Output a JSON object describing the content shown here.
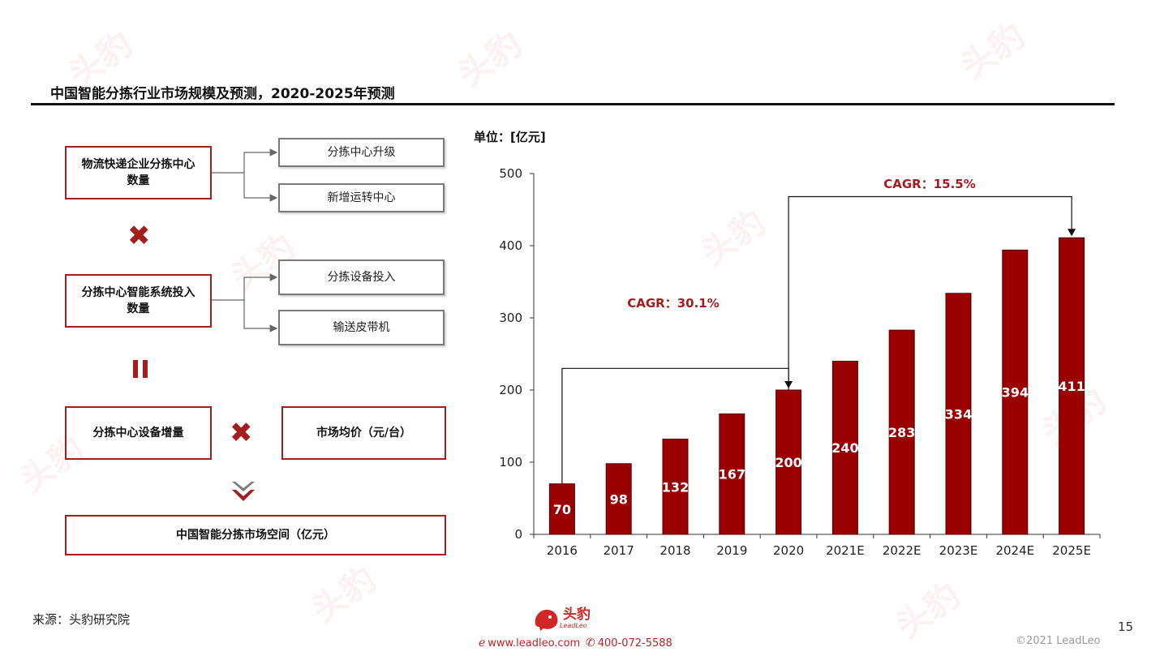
{
  "title": "中国智能分拣行业市场规模及预测，2020-2025年预测",
  "flow": {
    "box1": "物流快递企业分拣中心数量",
    "box1_sub1": "分拣中心升级",
    "box1_sub2": "新增运转中心",
    "box2": "分拣中心智能系统投入数量",
    "box2_sub1": "分拣设备投入",
    "box2_sub2": "输送皮带机",
    "box3": "分拣中心设备增量",
    "box4": "市场均价（元/台）",
    "box5": "中国智能分拣市场空间（亿元）",
    "times_icon": "multiply-icon",
    "equals_icon": "equals-icon",
    "down_icon": "double-chevron-down-icon"
  },
  "chart_data": {
    "type": "bar",
    "unit_label": "单位：[亿元]",
    "categories": [
      "2016",
      "2017",
      "2018",
      "2019",
      "2020",
      "2021E",
      "2022E",
      "2023E",
      "2024E",
      "2025E"
    ],
    "values": [
      70,
      98,
      132,
      167,
      200,
      240,
      283,
      334,
      394,
      411
    ],
    "ylim": [
      0,
      500
    ],
    "yticks": [
      0,
      100,
      200,
      300,
      400,
      500
    ],
    "bar_color": "#9b0000",
    "annotations": [
      {
        "text": "CAGR：30.1%",
        "from": "2016",
        "to": "2020"
      },
      {
        "text": "CAGR：15.5%",
        "from": "2020",
        "to": "2025E"
      }
    ],
    "grid": false,
    "legend": "none"
  },
  "footer": {
    "source": "来源：头豹研究院",
    "logo_text": "头豹",
    "logo_sub": "LeadLeo",
    "website": "www.leadleo.com",
    "phone": "400-072-5588",
    "page_number": "15",
    "copyright": "©2021 LeadLeo"
  },
  "colors": {
    "accent": "#a51d1d",
    "bar": "#9b0000",
    "brand": "#d12626"
  }
}
